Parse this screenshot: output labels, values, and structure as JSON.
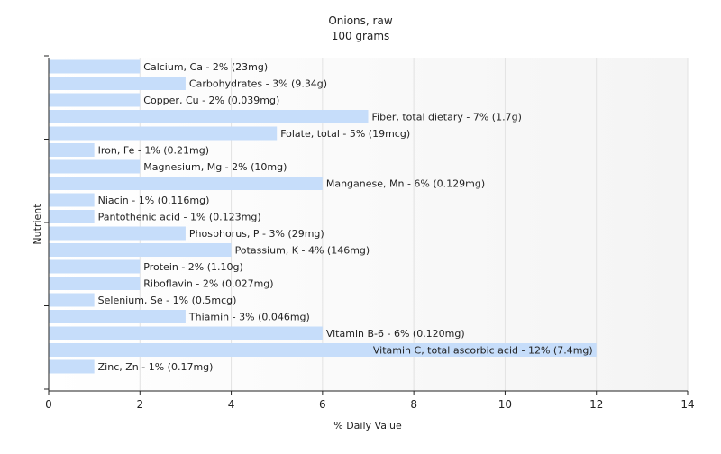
{
  "chart_data": {
    "type": "bar",
    "orientation": "horizontal",
    "title": "Onions, raw",
    "subtitle": "100 grams",
    "xlabel": "% Daily Value",
    "ylabel": "Nutrient",
    "xlim": [
      0,
      14
    ],
    "x_ticks": [
      "0",
      "2",
      "4",
      "6",
      "8",
      "10",
      "12",
      "14"
    ],
    "grid": "vertical",
    "bar_color": "#c6ddfa",
    "categories": [
      "Calcium, Ca",
      "Carbohydrates",
      "Copper, Cu",
      "Fiber, total dietary",
      "Folate, total",
      "Iron, Fe",
      "Magnesium, Mg",
      "Manganese, Mn",
      "Niacin",
      "Pantothenic acid",
      "Phosphorus, P",
      "Potassium, K",
      "Protein",
      "Riboflavin",
      "Selenium, Se",
      "Thiamin",
      "Vitamin B-6",
      "Vitamin C, total ascorbic acid",
      "Zinc, Zn"
    ],
    "values": [
      2,
      3,
      2,
      7,
      5,
      1,
      2,
      6,
      1,
      1,
      3,
      4,
      2,
      2,
      1,
      3,
      6,
      12,
      1
    ],
    "labels": [
      "Calcium, Ca - 2% (23mg)",
      "Carbohydrates - 3% (9.34g)",
      "Copper, Cu - 2% (0.039mg)",
      "Fiber, total dietary - 7% (1.7g)",
      "Folate, total - 5% (19mcg)",
      "Iron, Fe - 1% (0.21mg)",
      "Magnesium, Mg - 2% (10mg)",
      "Manganese, Mn - 6% (0.129mg)",
      "Niacin - 1% (0.116mg)",
      "Pantothenic acid - 1% (0.123mg)",
      "Phosphorus, P - 3% (29mg)",
      "Potassium, K - 4% (146mg)",
      "Protein - 2% (1.10g)",
      "Riboflavin - 2% (0.027mg)",
      "Selenium, Se - 1% (0.5mcg)",
      "Thiamin - 3% (0.046mg)",
      "Vitamin B-6 - 6% (0.120mg)",
      "Vitamin C, total ascorbic acid - 12% (7.4mg)",
      "Zinc, Zn - 1% (0.17mg)"
    ]
  }
}
